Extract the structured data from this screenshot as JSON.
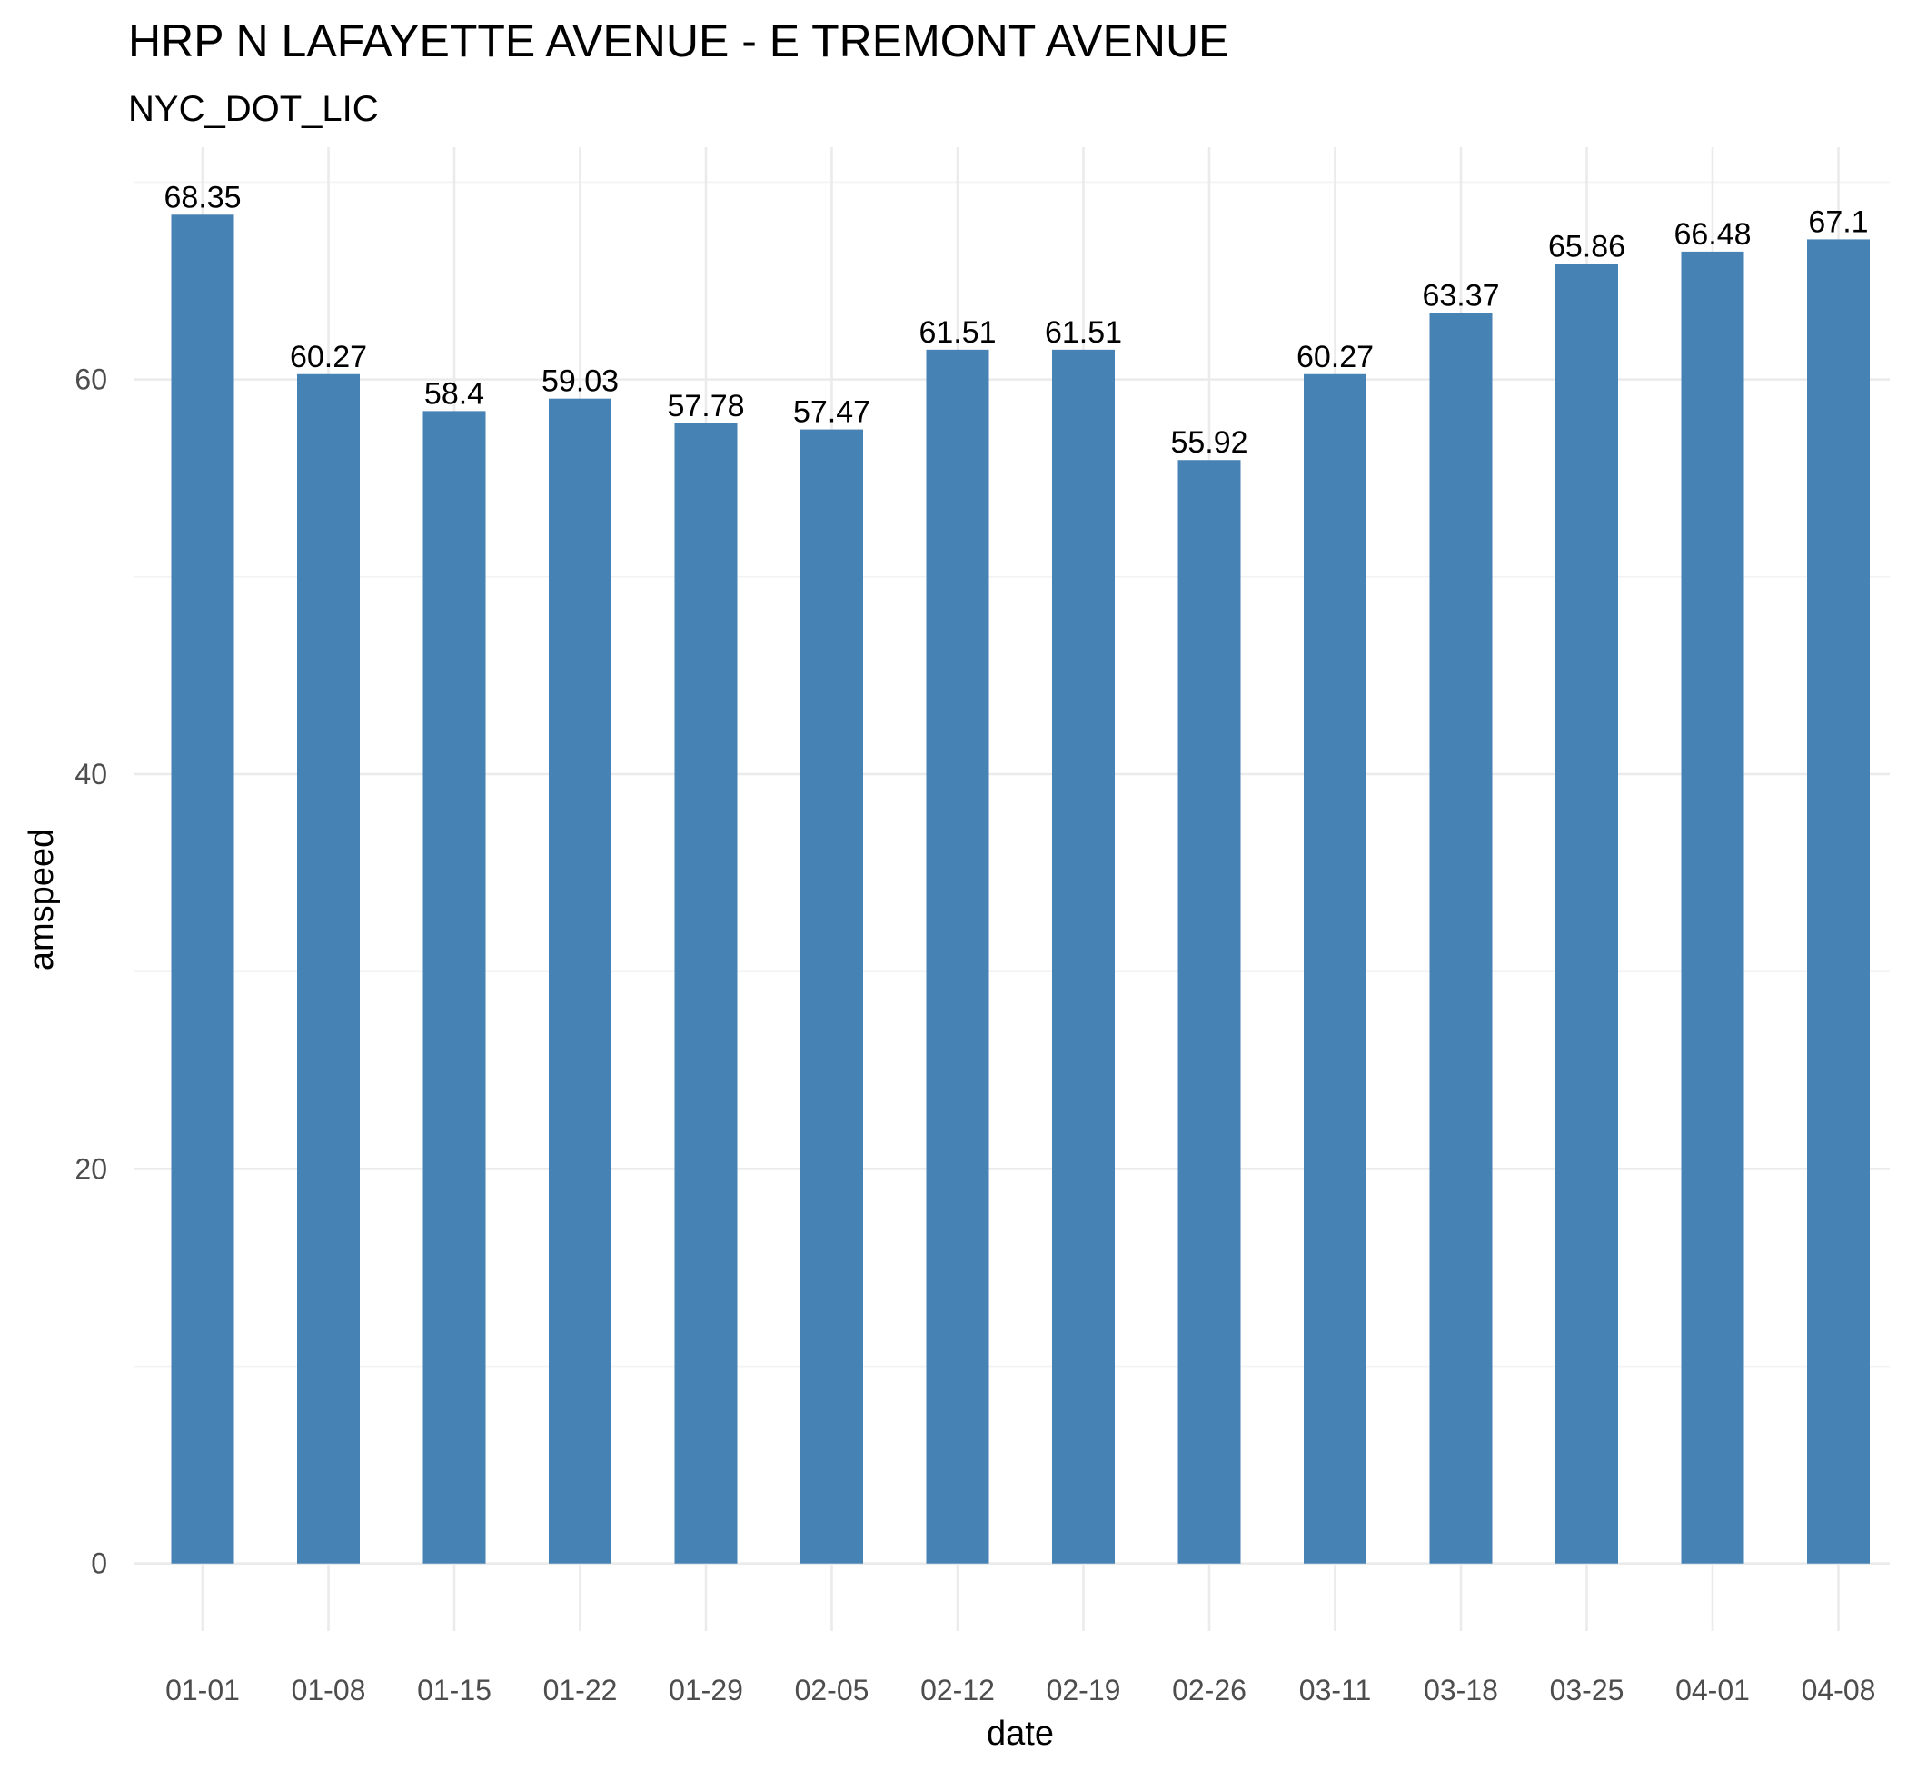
{
  "chart_data": {
    "type": "bar",
    "title": "HRP N LAFAYETTE AVENUE - E TREMONT AVENUE",
    "subtitle": "NYC_DOT_LIC",
    "xlabel": "date",
    "ylabel": "amspeed",
    "categories": [
      "01-01",
      "01-08",
      "01-15",
      "01-22",
      "01-29",
      "02-05",
      "02-12",
      "02-19",
      "02-26",
      "03-11",
      "03-18",
      "03-25",
      "04-01",
      "04-08"
    ],
    "values": [
      68.35,
      60.27,
      58.4,
      59.03,
      57.78,
      57.47,
      61.51,
      61.51,
      55.92,
      60.27,
      63.37,
      65.86,
      66.48,
      67.1
    ],
    "value_labels": [
      "68.35",
      "60.27",
      "58.4",
      "59.03",
      "57.78",
      "57.47",
      "61.51",
      "61.51",
      "55.92",
      "60.27",
      "63.37",
      "65.86",
      "66.48",
      "67.1"
    ],
    "yticks": [
      "0",
      "20",
      "40",
      "60"
    ],
    "ylim": [
      -3.42,
      71.77
    ],
    "bar_color": "#4682b4",
    "grid": true,
    "legend": "none"
  }
}
